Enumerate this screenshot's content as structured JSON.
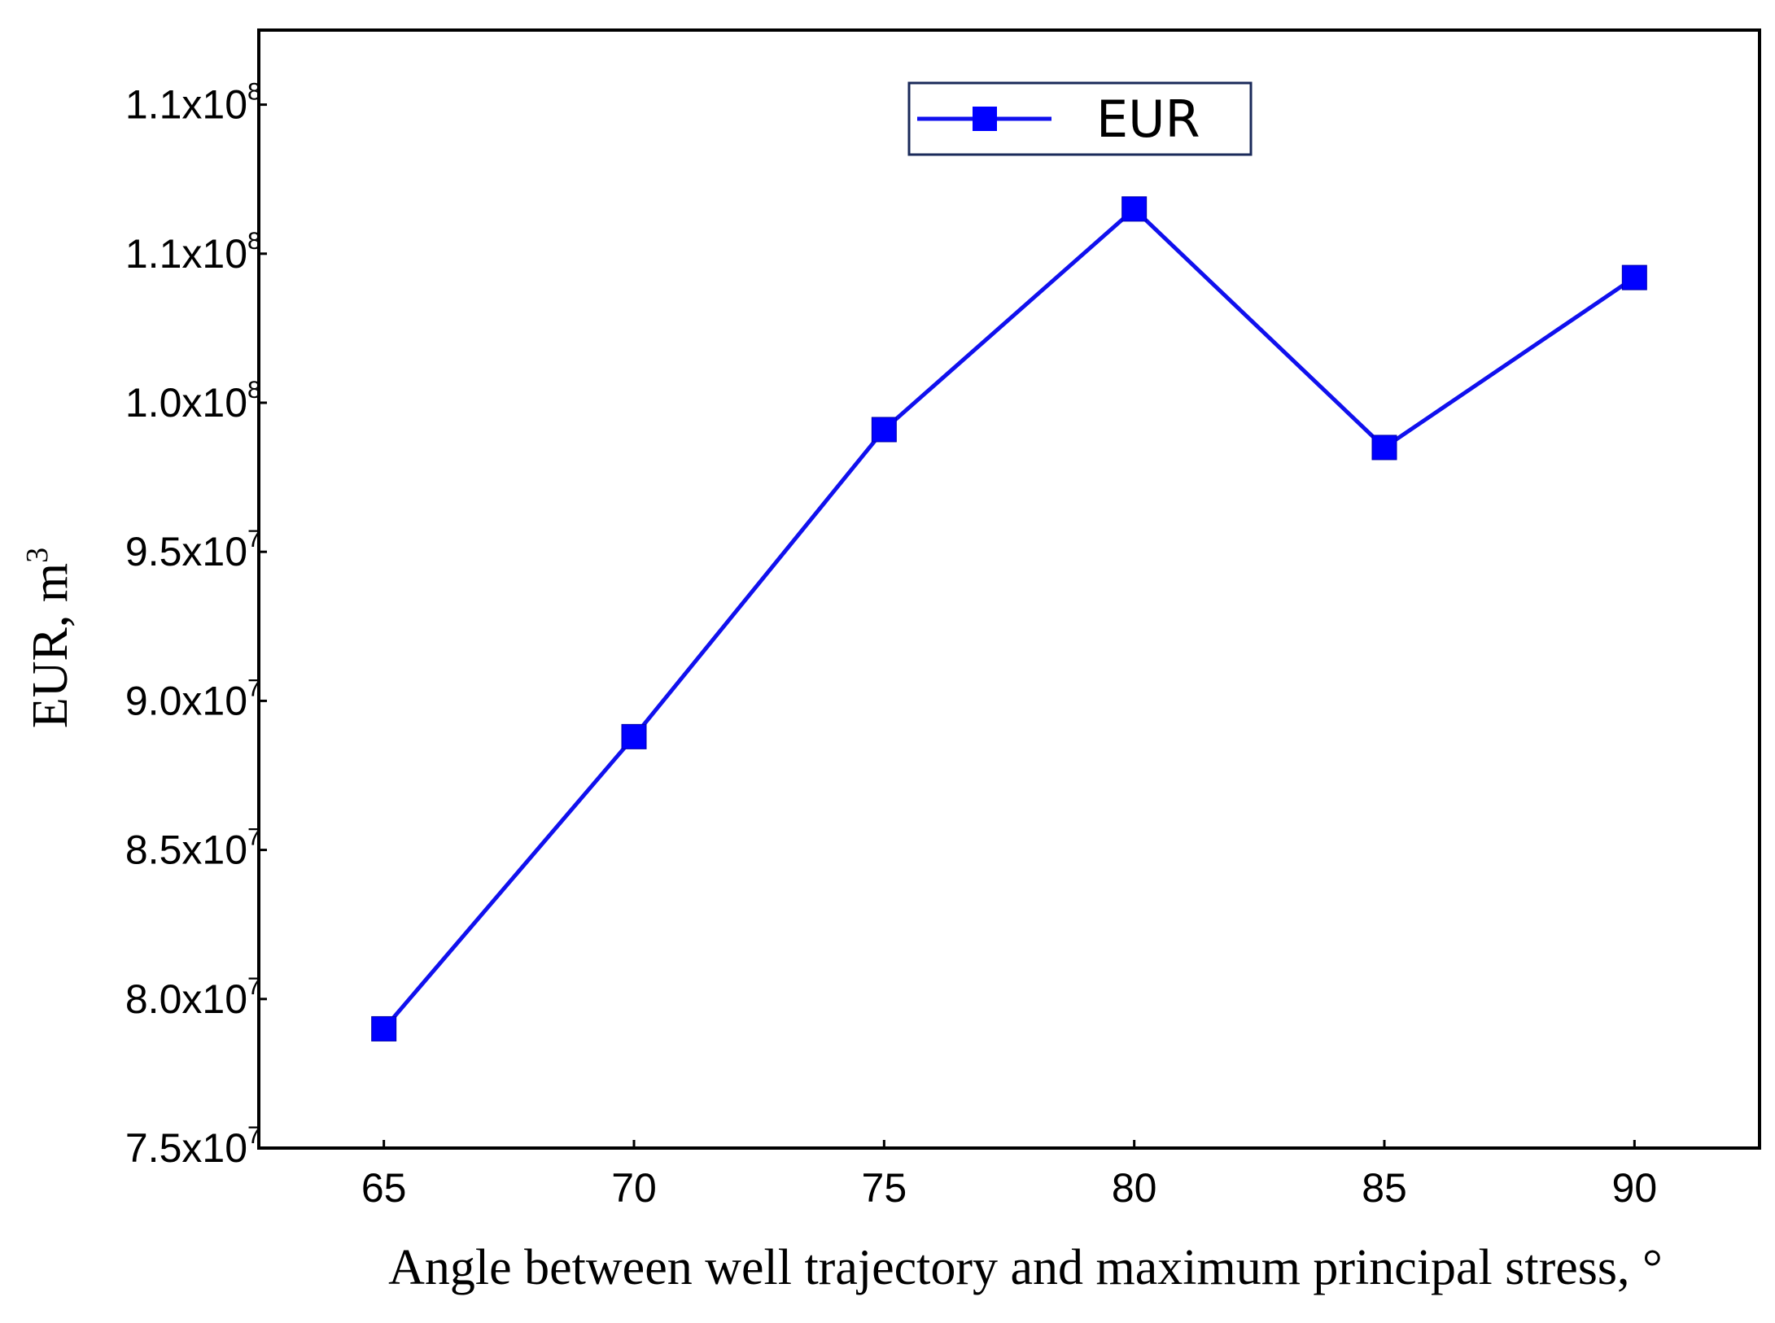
{
  "chart_data": {
    "type": "line",
    "title": "",
    "xlabel": "Angle between well trajectory and maximum principal stress, °",
    "ylabel": {
      "text": "EUR, m",
      "superscript": "3"
    },
    "x": [
      65,
      70,
      75,
      80,
      85,
      90
    ],
    "series": [
      {
        "name": "EUR",
        "values": [
          79000000,
          88800000,
          99100000,
          106500000,
          98500000,
          104200000
        ],
        "color": "#1010EE",
        "marker": "square",
        "marker_color": "#0000FF"
      }
    ],
    "xlim": [
      62.5,
      92.5
    ],
    "ylim": [
      75000000,
      112500000
    ],
    "x_ticks": [
      {
        "value": 65,
        "label": "65"
      },
      {
        "value": 70,
        "label": "70"
      },
      {
        "value": 75,
        "label": "75"
      },
      {
        "value": 80,
        "label": "80"
      },
      {
        "value": 85,
        "label": "85"
      },
      {
        "value": 90,
        "label": "90"
      }
    ],
    "y_ticks": [
      {
        "value": 75000000,
        "mantissa": "7.5x10",
        "exponent": "7"
      },
      {
        "value": 80000000,
        "mantissa": "8.0x10",
        "exponent": "7"
      },
      {
        "value": 85000000,
        "mantissa": "8.5x10",
        "exponent": "7"
      },
      {
        "value": 90000000,
        "mantissa": "9.0x10",
        "exponent": "7"
      },
      {
        "value": 95000000,
        "mantissa": "9.5x10",
        "exponent": "7"
      },
      {
        "value": 100000000,
        "mantissa": "1.0x10",
        "exponent": "8"
      },
      {
        "value": 105000000,
        "mantissa": "1.1x10",
        "exponent": "8"
      },
      {
        "value": 110000000,
        "mantissa": "1.1x10",
        "exponent": "8"
      }
    ],
    "legend": {
      "position": "top-center",
      "entries": [
        "EUR"
      ],
      "border_color": "#1A2A5A"
    },
    "grid": false
  }
}
